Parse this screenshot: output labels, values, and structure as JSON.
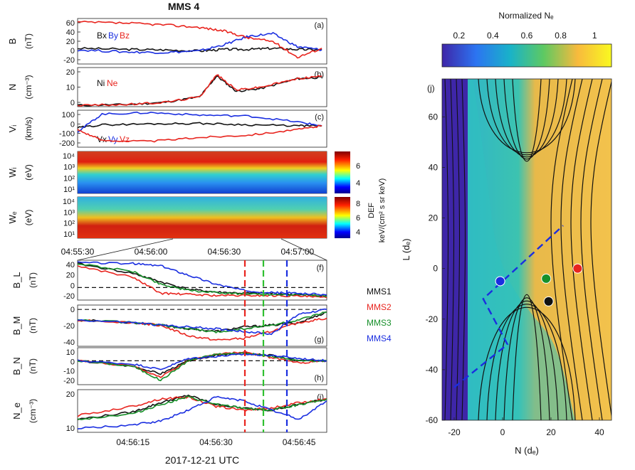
{
  "figure_title": "MMS 4",
  "x_axis_title": "2017-12-21 UTC",
  "dataset": {
    "panels_top": [
      {
        "id": "a",
        "label": "(a)",
        "ylabel": "B",
        "yunit": "(nT)",
        "yticks": [
          "60",
          "40",
          "20",
          "0",
          "-20"
        ]
      },
      {
        "id": "b",
        "label": "(b)",
        "ylabel": "N",
        "yunit": "(cm⁻³)",
        "yticks": [
          "20",
          "10",
          "0"
        ]
      },
      {
        "id": "c",
        "label": "(c)",
        "ylabel": "Vᵢ",
        "yunit": "(km/s)",
        "yticks": [
          "100",
          "0",
          "-100",
          "-200"
        ]
      },
      {
        "id": "d",
        "label": "(d)",
        "ylabel": "Wᵢ",
        "yunit": "(eV)",
        "yticks": [
          "10⁴",
          "10³",
          "10²",
          "10¹"
        ],
        "cbar_ticks": [
          "6",
          "4"
        ]
      },
      {
        "id": "e",
        "label": "(e)",
        "ylabel": "Wₑ",
        "yunit": "(eV)",
        "yticks": [
          "10⁴",
          "10³",
          "10²",
          "10¹"
        ],
        "cbar_ticks": [
          "8",
          "6",
          "4"
        ]
      }
    ],
    "top_xticks": [
      "04:55:30",
      "04:56:00",
      "04:56:30",
      "04:57:00"
    ],
    "legend_a": {
      "bx": "Bx",
      "by": "By",
      "bz": "Bz"
    },
    "legend_b": {
      "ni": "Ni",
      "ne": "Ne"
    },
    "legend_c": {
      "vx": "Vx",
      "vy": "Vy",
      "vz": "Vz"
    },
    "def_label": {
      "line1": "DEF",
      "line2": "keV/(cm² s sr keV)"
    },
    "panels_bottom": [
      {
        "id": "f",
        "label": "(f)",
        "ylabel": "B_L",
        "yunit": "(nT)",
        "yticks": [
          "40",
          "20",
          "0",
          "-20"
        ]
      },
      {
        "id": "g",
        "label": "(g)",
        "ylabel": "B_M",
        "yunit": "(nT)",
        "yticks": [
          "0",
          "-20",
          "-40"
        ]
      },
      {
        "id": "h",
        "label": "(h)",
        "ylabel": "B_N",
        "yunit": "(nT)",
        "yticks": [
          "10",
          "0",
          "-10",
          "-20"
        ]
      },
      {
        "id": "i",
        "label": "(i)",
        "ylabel": "N_e",
        "yunit": "(cm⁻³)",
        "yticks": [
          "20",
          "10"
        ]
      }
    ],
    "bottom_xticks": [
      "04:56:15",
      "04:56:30",
      "04:56:45"
    ],
    "spacecraft_legend": [
      "MMS1",
      "MMS2",
      "MMS3",
      "MMS4"
    ],
    "sim": {
      "panel_label": "(j)",
      "cbar_title": "Normalized Nₑ",
      "cbar_ticks": [
        "0.2",
        "0.4",
        "0.6",
        "0.8",
        "1"
      ],
      "xlabel": "N (dₑ)",
      "ylabel": "L (dₑ)",
      "xticks": [
        "-20",
        "0",
        "20",
        "40"
      ],
      "yticks": [
        "60",
        "40",
        "20",
        "0",
        "-20",
        "-40",
        "-60"
      ]
    }
  },
  "chart_data": [
    {
      "type": "line",
      "panel": "a",
      "title": "MMS 4",
      "ylabel": "B (nT)",
      "ylim": [
        -25,
        62
      ],
      "x": [
        "04:55:30",
        "04:55:50",
        "04:56:05",
        "04:56:20",
        "04:56:30",
        "04:56:40",
        "04:56:50",
        "04:57:00",
        "04:57:10"
      ],
      "series": [
        {
          "name": "Bx",
          "values": [
            5,
            3,
            2,
            0,
            3,
            3,
            5,
            3,
            2
          ]
        },
        {
          "name": "By",
          "values": [
            2,
            -2,
            -3,
            0,
            12,
            28,
            33,
            8,
            2
          ]
        },
        {
          "name": "Bz",
          "values": [
            55,
            53,
            50,
            45,
            38,
            25,
            18,
            -12,
            5
          ]
        }
      ]
    },
    {
      "type": "line",
      "panel": "b",
      "ylabel": "N (cm⁻³)",
      "ylim": [
        0,
        28
      ],
      "x": [
        "04:55:30",
        "04:55:50",
        "04:56:05",
        "04:56:20",
        "04:56:27",
        "04:56:35",
        "04:56:45",
        "04:57:00",
        "04:57:10"
      ],
      "series": [
        {
          "name": "Ni",
          "values": [
            1,
            1.5,
            3,
            7,
            22,
            11,
            13,
            20,
            21
          ]
        },
        {
          "name": "Ne",
          "values": [
            1,
            1.5,
            3,
            7,
            23,
            12,
            14,
            20,
            22
          ]
        }
      ]
    },
    {
      "type": "line",
      "panel": "c",
      "ylabel": "Vi (km/s)",
      "ylim": [
        -220,
        160
      ],
      "x": [
        "04:55:30",
        "04:55:40",
        "04:56:00",
        "04:56:20",
        "04:56:40",
        "04:57:00",
        "04:57:10"
      ],
      "series": [
        {
          "name": "Vx",
          "values": [
            -20,
            10,
            20,
            25,
            10,
            0,
            0
          ]
        },
        {
          "name": "Vy",
          "values": [
            -60,
            120,
            135,
            110,
            100,
            40,
            0
          ]
        },
        {
          "name": "Vz",
          "values": [
            -40,
            -150,
            -160,
            -120,
            -95,
            -40,
            0
          ]
        }
      ]
    },
    {
      "type": "heatmap",
      "panel": "d",
      "ylabel": "Wi (eV)",
      "yrange_eV": [
        10,
        20000
      ],
      "clim": [
        3.5,
        6.8
      ]
    },
    {
      "type": "heatmap",
      "panel": "e",
      "ylabel": "We (eV)",
      "yrange_eV": [
        10,
        20000
      ],
      "clim": [
        3.5,
        8.5
      ]
    },
    {
      "type": "line",
      "panel": "f",
      "ylabel": "BL (nT)",
      "ylim": [
        -22,
        48
      ],
      "x": [
        "04:56:05",
        "04:56:15",
        "04:56:20",
        "04:56:25",
        "04:56:30",
        "04:56:35",
        "04:56:40",
        "04:56:45",
        "04:56:50"
      ],
      "series": [
        {
          "name": "MMS1",
          "values": [
            42,
            25,
            10,
            -3,
            -8,
            -10,
            -10,
            -13,
            -15
          ]
        },
        {
          "name": "MMS2",
          "values": [
            38,
            18,
            -10,
            -12,
            -14,
            -14,
            -14,
            -15,
            -18
          ]
        },
        {
          "name": "MMS3",
          "values": [
            42,
            28,
            6,
            -5,
            -9,
            -11,
            -12,
            -12,
            -15
          ]
        },
        {
          "name": "MMS4",
          "values": [
            44,
            42,
            38,
            22,
            6,
            -5,
            -9,
            -10,
            -13
          ]
        }
      ]
    },
    {
      "type": "line",
      "panel": "g",
      "ylabel": "BM (nT)",
      "ylim": [
        -42,
        5
      ],
      "x": [
        "04:56:05",
        "04:56:15",
        "04:56:20",
        "04:56:25",
        "04:56:30",
        "04:56:35",
        "04:56:40",
        "04:56:45",
        "04:56:50"
      ],
      "series": [
        {
          "name": "MMS1",
          "values": [
            -12,
            -15,
            -18,
            -22,
            -25,
            -20,
            -18,
            -15,
            -3
          ]
        },
        {
          "name": "MMS2",
          "values": [
            -12,
            -15,
            -18,
            -30,
            -35,
            -33,
            -25,
            -15,
            -10
          ]
        },
        {
          "name": "MMS3",
          "values": [
            -12,
            -15,
            -18,
            -22,
            -26,
            -22,
            -18,
            -12,
            -3
          ]
        },
        {
          "name": "MMS4",
          "values": [
            -12,
            -15,
            -18,
            -20,
            -22,
            -25,
            -28,
            -5,
            0
          ]
        }
      ]
    },
    {
      "type": "line",
      "panel": "h",
      "ylabel": "BN (nT)",
      "ylim": [
        -22,
        12
      ],
      "x": [
        "04:56:05",
        "04:56:15",
        "04:56:20",
        "04:56:25",
        "04:56:30",
        "04:56:35",
        "04:56:40",
        "04:56:45",
        "04:56:50"
      ],
      "series": [
        {
          "name": "MMS1",
          "values": [
            0,
            -5,
            -12,
            0,
            5,
            7,
            5,
            0,
            0
          ]
        },
        {
          "name": "MMS2",
          "values": [
            0,
            -5,
            -15,
            0,
            6,
            8,
            3,
            -2,
            0
          ]
        },
        {
          "name": "MMS3",
          "values": [
            0,
            -5,
            -18,
            0,
            6,
            7,
            4,
            0,
            0
          ]
        },
        {
          "name": "MMS4",
          "values": [
            0,
            -3,
            -8,
            2,
            4,
            6,
            5,
            2,
            0
          ]
        }
      ]
    },
    {
      "type": "line",
      "panel": "i",
      "ylabel": "Ne (cm⁻³)",
      "ylim": [
        3,
        26
      ],
      "x": [
        "04:56:05",
        "04:56:15",
        "04:56:20",
        "04:56:25",
        "04:56:30",
        "04:56:35",
        "04:56:40",
        "04:56:45",
        "04:56:50"
      ],
      "series": [
        {
          "name": "MMS1",
          "values": [
            10,
            14,
            19,
            23,
            18,
            16,
            15,
            18,
            21
          ]
        },
        {
          "name": "MMS2",
          "values": [
            12,
            17,
            21,
            22,
            17,
            15,
            16,
            19,
            21
          ]
        },
        {
          "name": "MMS3",
          "values": [
            10,
            13,
            18,
            22,
            18,
            16,
            15,
            18,
            21
          ]
        },
        {
          "name": "MMS4",
          "values": [
            5,
            7,
            9,
            15,
            22,
            20,
            15,
            10,
            20
          ]
        }
      ]
    },
    {
      "type": "heatmap",
      "panel": "j",
      "xlabel": "N (de)",
      "ylabel": "L (de)",
      "xlim": [
        -25,
        45
      ],
      "ylim": [
        -60,
        75
      ],
      "clim": [
        0.1,
        1.1
      ],
      "markers": [
        {
          "name": "MMS4",
          "n": -1,
          "l": -5
        },
        {
          "name": "MMS3",
          "n": 18,
          "l": -4
        },
        {
          "name": "MMS1",
          "n": 19,
          "l": -13
        },
        {
          "name": "MMS2",
          "n": 31,
          "l": 0
        }
      ]
    }
  ]
}
